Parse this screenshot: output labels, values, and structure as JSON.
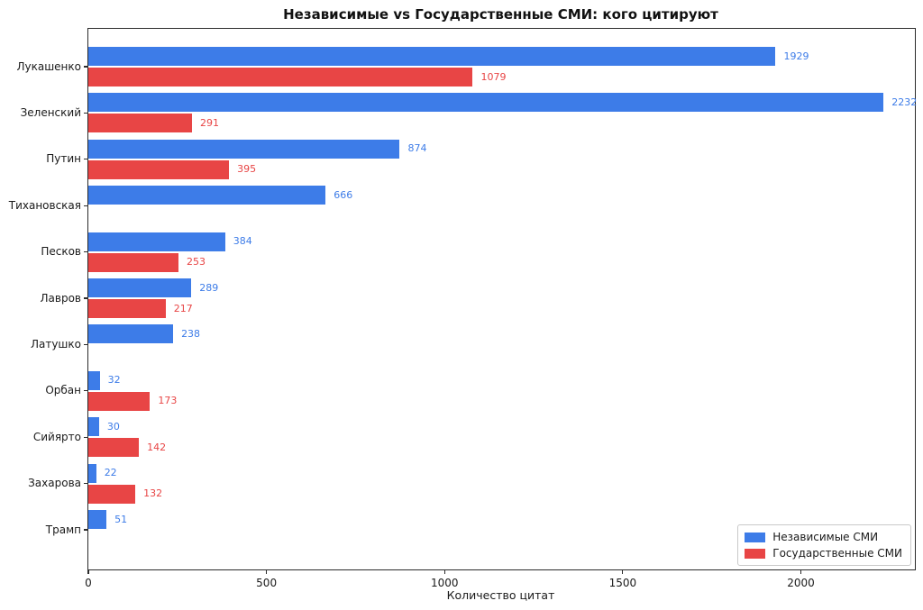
{
  "chart_data": {
    "type": "bar",
    "orientation": "horizontal",
    "title": "Независимые vs Государственные СМИ: кого цитируют",
    "xlabel": "Количество цитат",
    "categories": [
      "Лукашенко",
      "Зеленский",
      "Путин",
      "Тихановская",
      "Песков",
      "Лавров",
      "Латушко",
      "Орбан",
      "Сийярто",
      "Захарова",
      "Трамп"
    ],
    "series": [
      {
        "name": "Независимые СМИ",
        "color": "#3d7ce8",
        "values": [
          1929,
          2232,
          874,
          666,
          384,
          289,
          238,
          32,
          30,
          22,
          51
        ]
      },
      {
        "name": "Государственные СМИ",
        "color": "#e84545",
        "values": [
          1079,
          291,
          395,
          null,
          253,
          217,
          null,
          173,
          142,
          132,
          null
        ]
      }
    ],
    "xticks": [
      0,
      500,
      1000,
      1500,
      2000
    ],
    "xlim": [
      0,
      2320
    ],
    "grid": false,
    "legend_position": "lower right"
  }
}
